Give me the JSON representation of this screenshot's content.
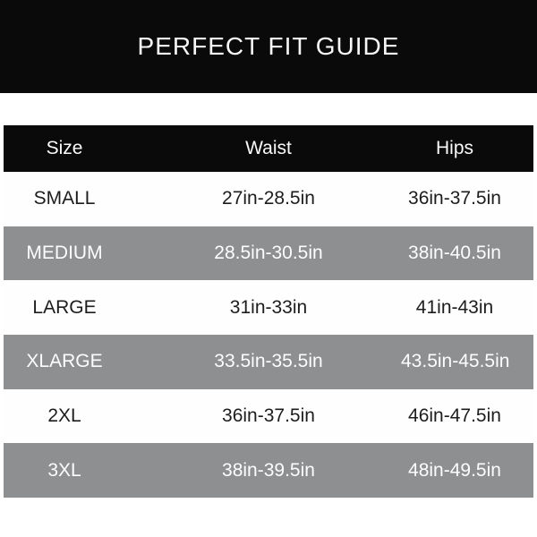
{
  "title": "PERFECT FIT GUIDE",
  "table": {
    "columns": [
      "Size",
      "Waist",
      "Hips"
    ],
    "rows": [
      {
        "size": "SMALL",
        "waist": "27in-28.5in",
        "hips": "36in-37.5in"
      },
      {
        "size": "MEDIUM",
        "waist": "28.5in-30.5in",
        "hips": "38in-40.5in"
      },
      {
        "size": "LARGE",
        "waist": "31in-33in",
        "hips": "41in-43in"
      },
      {
        "size": "XLARGE",
        "waist": "33.5in-35.5in",
        "hips": "43.5in-45.5in"
      },
      {
        "size": "2XL",
        "waist": "36in-37.5in",
        "hips": "46in-47.5in"
      },
      {
        "size": "3XL",
        "waist": "38in-39.5in",
        "hips": "48in-49.5in"
      }
    ]
  },
  "colors": {
    "banner_black": "#0a0a0a",
    "header_black": "#0a0a0a",
    "row_gray": "#8d8f90",
    "row_white": "#fefefe",
    "text_dark": "#1d1d1d",
    "text_light": "#fdfdfd"
  },
  "chart_data": {
    "type": "table",
    "title": "PERFECT FIT GUIDE",
    "columns": [
      "Size",
      "Waist",
      "Hips"
    ],
    "rows": [
      [
        "SMALL",
        "27in-28.5in",
        "36in-37.5in"
      ],
      [
        "MEDIUM",
        "28.5in-30.5in",
        "38in-40.5in"
      ],
      [
        "LARGE",
        "31in-33in",
        "41in-43in"
      ],
      [
        "XLARGE",
        "33.5in-35.5in",
        "43.5in-45.5in"
      ],
      [
        "2XL",
        "36in-37.5in",
        "46in-47.5in"
      ],
      [
        "3XL",
        "38in-39.5in",
        "48in-49.5in"
      ]
    ],
    "layout_hints": {
      "row_striping": [
        "white",
        "gray"
      ],
      "header_background": "#0a0a0a",
      "grid": false
    }
  }
}
